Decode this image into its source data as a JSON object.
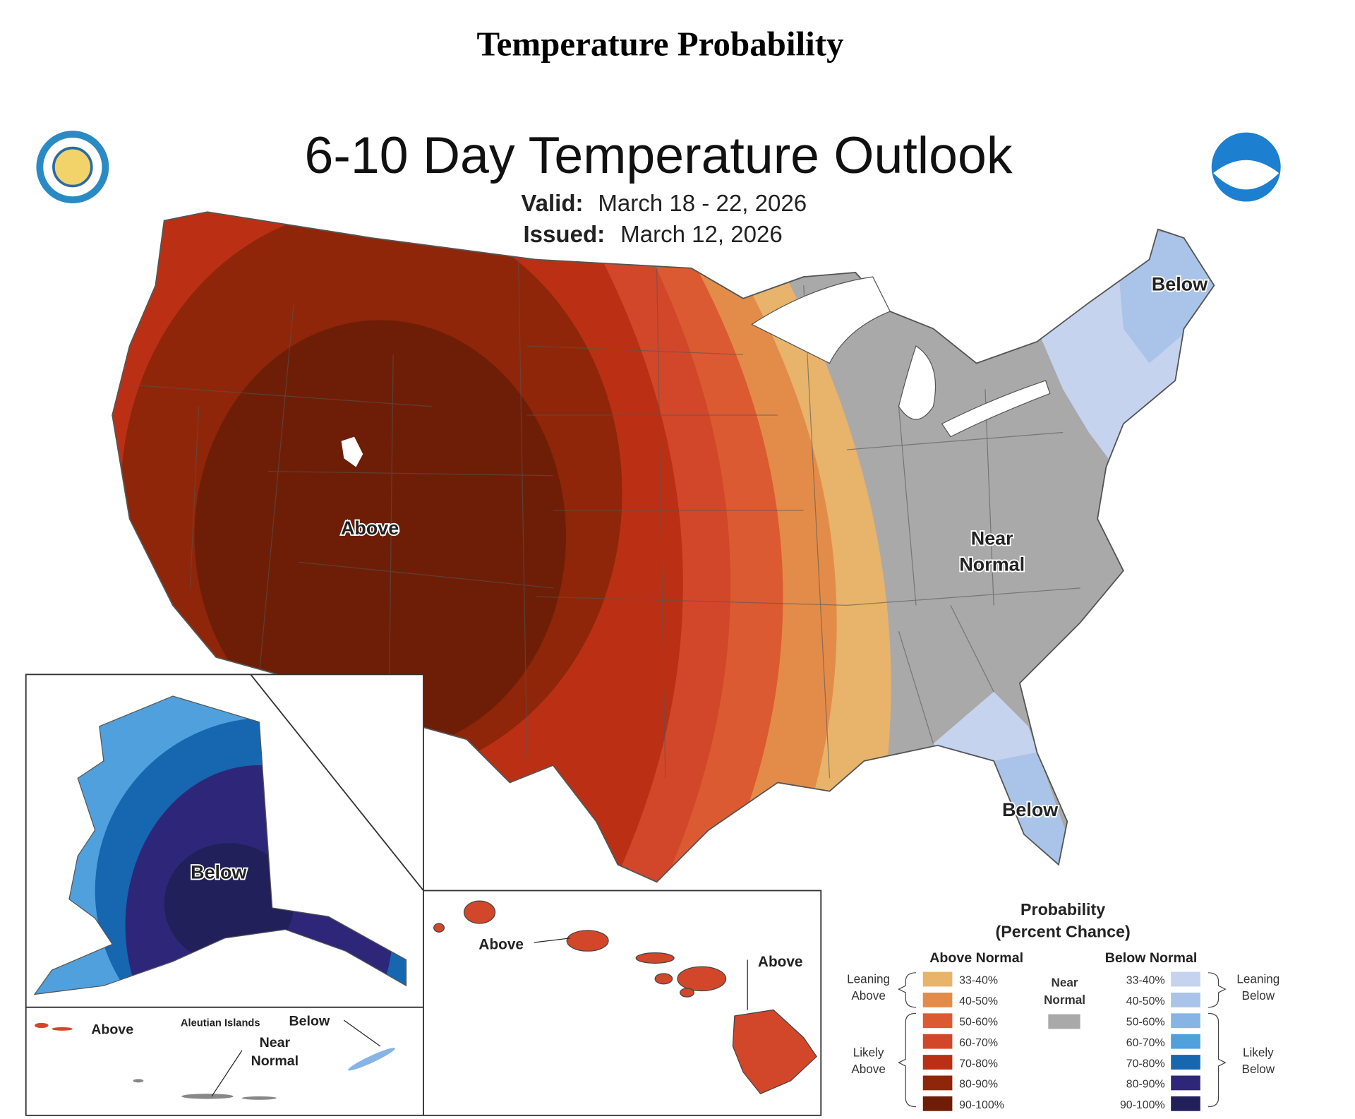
{
  "header": {
    "title": "Temperature Probability",
    "heading": "6-10 Day Temperature Outlook",
    "valid_label": "Valid:",
    "valid_date": "March 18 - 22, 2026",
    "issued_label": "Issued:",
    "issued_date": "March 12, 2026"
  },
  "map_labels": {
    "conus_above": "Above",
    "conus_near_normal": [
      "Near",
      "Normal"
    ],
    "northeast_below": "Below",
    "florida_below": "Below",
    "alaska_below": "Below",
    "aleutian_above": "Above",
    "aleutian_title": "Aleutian Islands",
    "aleutian_below": "Below",
    "aleutian_near_normal": [
      "Near",
      "Normal"
    ],
    "hawaii_above_west": "Above",
    "hawaii_above_east": "Above"
  },
  "legend": {
    "title": [
      "Probability",
      "(Percent Chance)"
    ],
    "above_header": "Above Normal",
    "below_header": "Below Normal",
    "near": {
      "label": [
        "Near",
        "Normal"
      ],
      "color": "#a9a9a9"
    },
    "leaning_above": [
      "Leaning",
      "Above"
    ],
    "likely_above": [
      "Likely",
      "Above"
    ],
    "leaning_below": [
      "Leaning",
      "Below"
    ],
    "likely_below": [
      "Likely",
      "Below"
    ],
    "above_items": [
      {
        "label": "33-40%",
        "color": "#e8b36a"
      },
      {
        "label": "40-50%",
        "color": "#e38c4a"
      },
      {
        "label": "50-60%",
        "color": "#dc5a32"
      },
      {
        "label": "60-70%",
        "color": "#d2472a"
      },
      {
        "label": "70-80%",
        "color": "#bb3014"
      },
      {
        "label": "80-90%",
        "color": "#8f2609"
      },
      {
        "label": "90-100%",
        "color": "#6e1e07"
      }
    ],
    "below_items": [
      {
        "label": "33-40%",
        "color": "#c5d3ee"
      },
      {
        "label": "40-50%",
        "color": "#a9c4e8"
      },
      {
        "label": "50-60%",
        "color": "#86b5e5"
      },
      {
        "label": "60-70%",
        "color": "#4fa0dc"
      },
      {
        "label": "70-80%",
        "color": "#1766b0"
      },
      {
        "label": "80-90%",
        "color": "#2e2779"
      },
      {
        "label": "90-100%",
        "color": "#22205a"
      }
    ]
  }
}
